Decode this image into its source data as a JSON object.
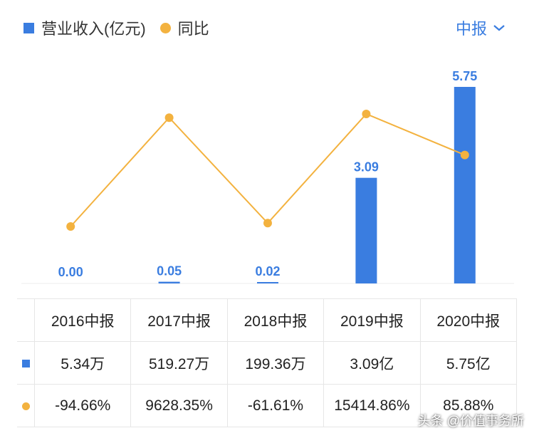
{
  "legend": {
    "revenue_label": "营业收入(亿元)",
    "yoy_label": "同比"
  },
  "period_select": {
    "value": "中报",
    "icon": "chevron-down-icon"
  },
  "colors": {
    "bar": "#3a7de0",
    "line": "#f3b23f",
    "positive": "#e8505b",
    "negative": "#2bb673"
  },
  "chart_data": {
    "type": "bar",
    "categories": [
      "2016中报",
      "2017中报",
      "2018中报",
      "2019中报",
      "2020中报"
    ],
    "series": [
      {
        "name": "营业收入(亿元)",
        "type": "bar",
        "values": [
          0.0,
          0.05,
          0.02,
          3.09,
          5.75
        ],
        "labels": [
          "0.00",
          "0.05",
          "0.02",
          "3.09",
          "5.75"
        ]
      },
      {
        "name": "同比",
        "type": "line",
        "values": [
          -94.66,
          9628.35,
          -61.61,
          15414.86,
          85.88
        ]
      }
    ],
    "grid": false,
    "legend_position": "top-left"
  },
  "table": {
    "headers": [
      "2016中报",
      "2017中报",
      "2018中报",
      "2019中报",
      "2020中报"
    ],
    "revenue_row": [
      "5.34万",
      "519.27万",
      "199.36万",
      "3.09亿",
      "5.75亿"
    ],
    "yoy_row": [
      "-94.66%",
      "9628.35%",
      "-61.61%",
      "15414.86%",
      "85.88%"
    ]
  },
  "watermark": "头条 @价值事务所"
}
